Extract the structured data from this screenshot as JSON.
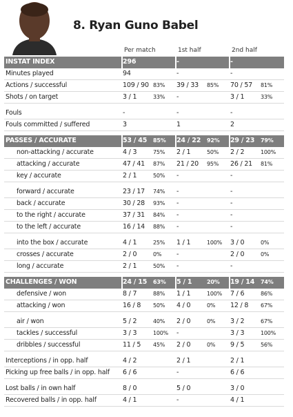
{
  "header": {
    "title": "8. Ryan Guno Babel"
  },
  "table": {
    "columns": [
      "Per match",
      "1st half",
      "2nd half"
    ],
    "blocks": [
      {
        "header": {
          "label": "INSTAT INDEX",
          "cells": [
            [
              "296"
            ],
            [
              "-"
            ],
            [
              "-"
            ]
          ]
        },
        "rows": [
          {
            "label": "Minutes played",
            "cells": [
              [
                "94"
              ],
              [
                "-"
              ],
              [
                "-"
              ]
            ]
          },
          {
            "label": "Actions / successful",
            "cells": [
              [
                "109 / 90",
                "83%"
              ],
              [
                "39 / 33",
                "85%"
              ],
              [
                "70 / 57",
                "81%"
              ]
            ]
          },
          {
            "label": "Shots / on target",
            "cells": [
              [
                "3 / 1",
                "33%"
              ],
              [
                "-"
              ],
              [
                "3 / 1",
                "33%"
              ]
            ]
          }
        ]
      },
      {
        "rows": [
          {
            "label": "Fouls",
            "cells": [
              [
                "-"
              ],
              [
                "-"
              ],
              [
                "-"
              ]
            ]
          },
          {
            "label": "Fouls committed / suffered",
            "cells": [
              [
                "3"
              ],
              [
                "1"
              ],
              [
                "2"
              ]
            ]
          }
        ]
      },
      {
        "header": {
          "label": "PASSES / ACCURATE",
          "cells": [
            [
              "53 / 45",
              "85%"
            ],
            [
              "24 / 22",
              "92%"
            ],
            [
              "29 / 23",
              "79%"
            ]
          ]
        },
        "rows": [
          {
            "label": "non-attacking / accurate",
            "cells": [
              [
                "4 / 3",
                "75%"
              ],
              [
                "2 / 1",
                "50%"
              ],
              [
                "2 / 2",
                "100%"
              ]
            ]
          },
          {
            "label": "attacking / accurate",
            "cells": [
              [
                "47 / 41",
                "87%"
              ],
              [
                "21 / 20",
                "95%"
              ],
              [
                "26 / 21",
                "81%"
              ]
            ]
          },
          {
            "label": "key / accurate",
            "cells": [
              [
                "2 / 1",
                "50%"
              ],
              [
                "-"
              ],
              [
                "-"
              ]
            ]
          }
        ]
      },
      {
        "rows": [
          {
            "label": "forward / accurate",
            "cells": [
              [
                "23 / 17",
                "74%"
              ],
              [
                "-"
              ],
              [
                "-"
              ]
            ]
          },
          {
            "label": "back / accurate",
            "cells": [
              [
                "30 / 28",
                "93%"
              ],
              [
                "-"
              ],
              [
                "-"
              ]
            ]
          },
          {
            "label": "to the right / accurate",
            "cells": [
              [
                "37 / 31",
                "84%"
              ],
              [
                "-"
              ],
              [
                "-"
              ]
            ]
          },
          {
            "label": "to the left / accurate",
            "cells": [
              [
                "16 / 14",
                "88%"
              ],
              [
                "-"
              ],
              [
                "-"
              ]
            ]
          }
        ]
      },
      {
        "rows": [
          {
            "label": "into the box / accurate",
            "cells": [
              [
                "4 / 1",
                "25%"
              ],
              [
                "1 / 1",
                "100%"
              ],
              [
                "3 / 0",
                "0%"
              ]
            ]
          },
          {
            "label": "crosses / accurate",
            "cells": [
              [
                "2 / 0",
                "0%"
              ],
              [
                "-"
              ],
              [
                "2 / 0",
                "0%"
              ]
            ]
          },
          {
            "label": "long / accurate",
            "cells": [
              [
                "2 / 1",
                "50%"
              ],
              [
                "-"
              ],
              [
                "-"
              ]
            ]
          }
        ]
      },
      {
        "header": {
          "label": "CHALLENGES / WON",
          "cells": [
            [
              "24 / 15",
              "63%"
            ],
            [
              "5 / 1",
              "20%"
            ],
            [
              "19 / 14",
              "74%"
            ]
          ]
        },
        "rows": [
          {
            "label": "defensive / won",
            "cells": [
              [
                "8 / 7",
                "88%"
              ],
              [
                "1 / 1",
                "100%"
              ],
              [
                "7 / 6",
                "86%"
              ]
            ]
          },
          {
            "label": "attacking / won",
            "cells": [
              [
                "16 / 8",
                "50%"
              ],
              [
                "4 / 0",
                "0%"
              ],
              [
                "12 / 8",
                "67%"
              ]
            ]
          }
        ]
      },
      {
        "rows": [
          {
            "label": "air / won",
            "cells": [
              [
                "5 / 2",
                "40%"
              ],
              [
                "2 / 0",
                "0%"
              ],
              [
                "3 / 2",
                "67%"
              ]
            ]
          },
          {
            "label": "tackles / successful",
            "cells": [
              [
                "3 / 3",
                "100%"
              ],
              [
                "-"
              ],
              [
                "3 / 3",
                "100%"
              ]
            ]
          },
          {
            "label": "dribbles / successful",
            "cells": [
              [
                "11 / 5",
                "45%"
              ],
              [
                "2 / 0",
                "0%"
              ],
              [
                "9 / 5",
                "56%"
              ]
            ]
          }
        ]
      },
      {
        "rows": [
          {
            "label": "Interceptions / in opp. half",
            "cells": [
              [
                "4 / 2"
              ],
              [
                "2 / 1"
              ],
              [
                "2 / 1"
              ]
            ]
          },
          {
            "label": "Picking up free balls / in opp. half",
            "cells": [
              [
                "6 / 6"
              ],
              [
                "-"
              ],
              [
                "6 / 6"
              ]
            ]
          }
        ]
      },
      {
        "rows": [
          {
            "label": "Lost balls / in own half",
            "cells": [
              [
                "8 / 0"
              ],
              [
                "5 / 0"
              ],
              [
                "3 / 0"
              ]
            ]
          },
          {
            "label": "Recovered balls / in opp. half",
            "cells": [
              [
                "4 / 1"
              ],
              [
                "-"
              ],
              [
                "4 / 1"
              ]
            ]
          }
        ]
      }
    ]
  }
}
